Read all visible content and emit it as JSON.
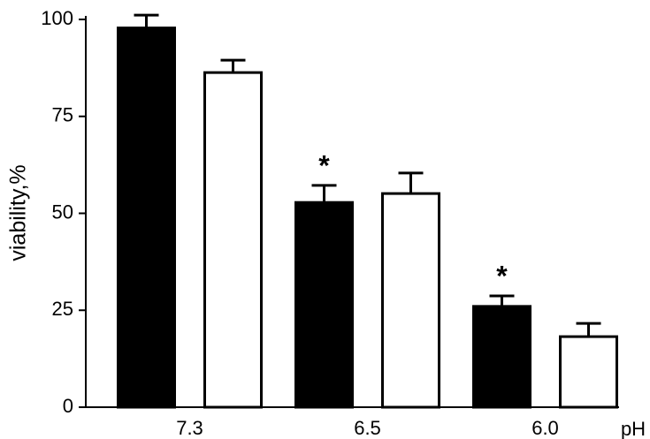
{
  "chart_data": {
    "type": "bar",
    "y_label": "viability,%",
    "x_label": "pH",
    "categories": [
      "7.3",
      "6.5",
      "6.0"
    ],
    "series": [
      {
        "color": "#000000",
        "values": [
          97.8,
          52.8,
          26
        ],
        "errors": [
          3.3,
          4.4,
          2.7
        ],
        "marker_labels": [
          null,
          "*",
          "*"
        ]
      },
      {
        "color": "#ffffff",
        "values": [
          86.3,
          55.1,
          18.2
        ],
        "errors": [
          3.2,
          5.3,
          3.4
        ]
      }
    ],
    "ylim": [
      0,
      100
    ],
    "yticks": [
      0,
      25,
      50,
      75,
      100
    ]
  }
}
